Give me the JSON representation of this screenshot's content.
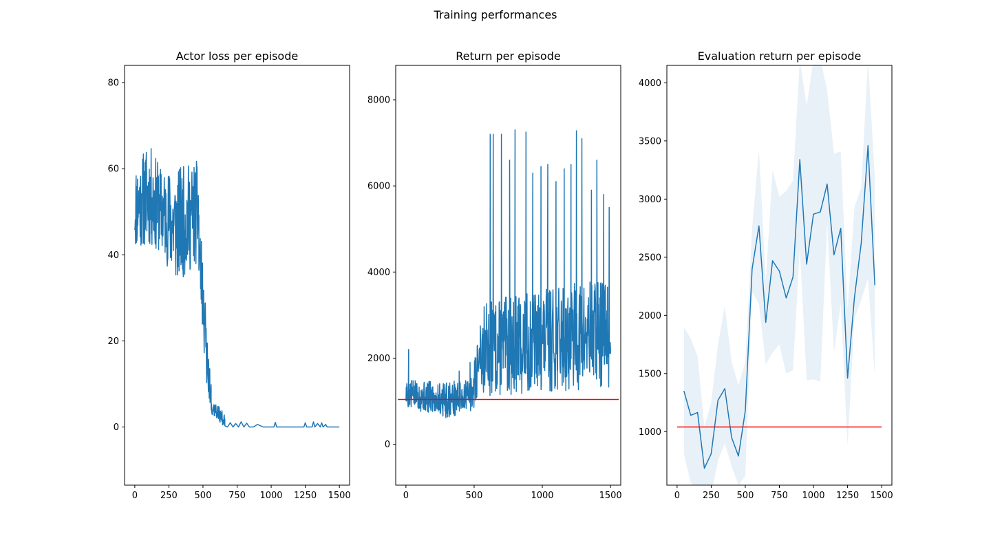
{
  "figure": {
    "suptitle": "Training performances"
  },
  "colors": {
    "series": "#1f77b4",
    "band": "#1f77b4",
    "reference": "#ff0000",
    "axes": "#000000"
  },
  "chart_data": [
    {
      "type": "line",
      "title": "Actor loss per episode",
      "xlabel": "",
      "ylabel": "",
      "xlim": [
        -75,
        1575
      ],
      "ylim": [
        -13.5,
        84
      ],
      "xticks": [
        0,
        250,
        500,
        750,
        1000,
        1250,
        1500
      ],
      "xtick_labels": [
        "0",
        "250",
        "500",
        "750",
        "1000",
        "1250",
        "1500"
      ],
      "yticks": [
        0,
        20,
        40,
        60,
        80
      ],
      "ytick_labels": [
        "0",
        "20",
        "40",
        "60",
        "80"
      ],
      "noisy_segments": [
        {
          "x_start": 0,
          "x_end": 470,
          "low": [
            [
              0,
              41
            ],
            [
              100,
              42
            ],
            [
              200,
              40
            ],
            [
              300,
              33
            ],
            [
              470,
              38
            ]
          ],
          "high": [
            [
              0,
              61
            ],
            [
              100,
              66
            ],
            [
              200,
              60
            ],
            [
              300,
              60
            ],
            [
              470,
              62
            ]
          ],
          "count": 240,
          "seed": 11
        },
        {
          "x_start": 470,
          "x_end": 560,
          "low": [
            [
              470,
              32
            ],
            [
              500,
              20
            ],
            [
              530,
              8
            ],
            [
              560,
              4
            ]
          ],
          "high": [
            [
              470,
              50
            ],
            [
              500,
              42
            ],
            [
              530,
              22
            ],
            [
              560,
              10
            ]
          ],
          "count": 45,
          "seed": 23
        },
        {
          "x_start": 560,
          "x_end": 660,
          "low": [
            [
              560,
              3
            ],
            [
              660,
              0
            ]
          ],
          "high": [
            [
              560,
              7
            ],
            [
              660,
              3
            ]
          ],
          "count": 50,
          "seed": 37
        }
      ],
      "series": [
        {
          "x": [
            660,
            680,
            700,
            720,
            740,
            760,
            780,
            800,
            820,
            840,
            870,
            900,
            940,
            980,
            1020,
            1030,
            1040,
            1060,
            1100,
            1150,
            1200,
            1240,
            1250,
            1260,
            1300,
            1310,
            1320,
            1340,
            1360,
            1370,
            1380,
            1400,
            1410,
            1420,
            1440,
            1470,
            1500
          ],
          "y": [
            0.3,
            0,
            1.0,
            0,
            0.8,
            0,
            1.2,
            0,
            0.9,
            0,
            0,
            0.6,
            0,
            0,
            0,
            1.1,
            0,
            0,
            0,
            0,
            0,
            0,
            1.0,
            0,
            0,
            1.2,
            0,
            0.8,
            0,
            1.0,
            0,
            0.6,
            0,
            0,
            0,
            0,
            0
          ]
        }
      ]
    },
    {
      "type": "line",
      "title": "Return per episode",
      "xlabel": "",
      "ylabel": "",
      "xlim": [
        -75,
        1575
      ],
      "ylim": [
        -950,
        8800
      ],
      "xticks": [
        0,
        500,
        1000,
        1500
      ],
      "xtick_labels": [
        "0",
        "500",
        "1000",
        "1500"
      ],
      "yticks": [
        0,
        2000,
        4000,
        6000,
        8000
      ],
      "ytick_labels": [
        "0",
        "2000",
        "4000",
        "6000",
        "8000"
      ],
      "reference_line": {
        "y": 1040,
        "x_start": -60,
        "x_end": 1560
      },
      "noisy_segments": [
        {
          "x_start": 0,
          "x_end": 500,
          "low": [
            [
              0,
              850
            ],
            [
              300,
              600
            ],
            [
              500,
              800
            ]
          ],
          "high": [
            [
              0,
              1500
            ],
            [
              300,
              1450
            ],
            [
              500,
              1550
            ]
          ],
          "count": 250,
          "seed": 5
        },
        {
          "x_start": 500,
          "x_end": 560,
          "low": [
            [
              500,
              900
            ],
            [
              560,
              1300
            ]
          ],
          "high": [
            [
              500,
              2000
            ],
            [
              560,
              2800
            ]
          ],
          "count": 25,
          "seed": 7
        },
        {
          "x_start": 560,
          "x_end": 1500,
          "low": [
            [
              560,
              1100
            ],
            [
              1500,
              1300
            ]
          ],
          "high": [
            [
              560,
              3300
            ],
            [
              1000,
              3600
            ],
            [
              1500,
              3900
            ]
          ],
          "count": 420,
          "seed": 13
        }
      ],
      "series": [
        {
          "x": [
            20,
            390,
            470,
            545,
            618,
            628,
            640,
            650,
            660,
            700,
            710,
            760,
            770,
            800,
            810,
            880,
            890,
            930,
            940,
            990,
            1000,
            1040,
            1050,
            1100,
            1110,
            1160,
            1170,
            1210,
            1220,
            1250,
            1260,
            1290,
            1300,
            1360,
            1370,
            1400,
            1410,
            1450,
            1460,
            1490,
            1500
          ],
          "y": [
            2200,
            1700,
            1900,
            2750,
            7200,
            2300,
            7200,
            3000,
            2200,
            7200,
            2400,
            6600,
            2100,
            7300,
            2500,
            7250,
            2200,
            6300,
            2300,
            6450,
            2400,
            6500,
            2300,
            6100,
            2200,
            6400,
            2300,
            6500,
            2400,
            7280,
            2300,
            7100,
            2200,
            5900,
            2300,
            6600,
            2200,
            5800,
            2200,
            5500,
            2100
          ]
        }
      ]
    },
    {
      "type": "area",
      "title": "Evaluation return per episode",
      "xlabel": "",
      "ylabel": "",
      "xlim": [
        -75,
        1575
      ],
      "ylim": [
        540,
        4150
      ],
      "xticks": [
        0,
        250,
        500,
        750,
        1000,
        1250,
        1500
      ],
      "xtick_labels": [
        "0",
        "250",
        "500",
        "750",
        "1000",
        "1250",
        "1500"
      ],
      "yticks": [
        1000,
        1500,
        2000,
        2500,
        3000,
        3500,
        4000
      ],
      "ytick_labels": [
        "1000",
        "1500",
        "2000",
        "2500",
        "3000",
        "3500",
        "4000"
      ],
      "reference_line": {
        "y": 1040,
        "x_start": 0,
        "x_end": 1500
      },
      "series": [
        {
          "x": [
            50,
            100,
            150,
            200,
            250,
            300,
            350,
            400,
            450,
            500,
            550,
            600,
            650,
            700,
            750,
            800,
            850,
            900,
            950,
            1000,
            1050,
            1100,
            1150,
            1200,
            1250,
            1300,
            1350,
            1400,
            1450
          ],
          "y": [
            1350,
            1140,
            1165,
            685,
            810,
            1270,
            1370,
            950,
            790,
            1180,
            2400,
            2770,
            1940,
            2470,
            2380,
            2150,
            2330,
            3340,
            2440,
            2870,
            2890,
            3130,
            2520,
            2750,
            1460,
            2150,
            2620,
            3460,
            2260
          ],
          "lower": [
            810,
            560,
            500,
            380,
            460,
            750,
            900,
            700,
            540,
            620,
            2200,
            2100,
            1580,
            1680,
            1750,
            1500,
            1530,
            2580,
            1440,
            1450,
            1430,
            2800,
            1680,
            2100,
            880,
            1970,
            2130,
            2320,
            1480
          ],
          "upper": [
            1900,
            1800,
            1650,
            1040,
            1250,
            1750,
            2080,
            1600,
            1400,
            1600,
            2750,
            3430,
            2300,
            3250,
            3020,
            3070,
            3160,
            4200,
            3800,
            4200,
            4200,
            3940,
            3390,
            3410,
            2050,
            2930,
            3100,
            4200,
            3180
          ]
        }
      ]
    }
  ]
}
